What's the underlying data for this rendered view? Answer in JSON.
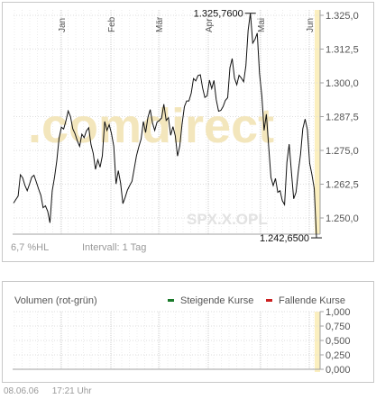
{
  "chart_data": [
    {
      "type": "line",
      "title": "",
      "instrument": "SPX.X.OPL",
      "watermark": ".comdirect",
      "months": [
        "Jan",
        "Feb",
        "Mär",
        "Apr",
        "Mai",
        "Jun"
      ],
      "yticks": [
        "1.325,0",
        "1.312,5",
        "1.300,0",
        "1.287,5",
        "1.275,0",
        "1.262,5",
        "1.250,0"
      ],
      "ytick_values": [
        1325.0,
        1312.5,
        1300.0,
        1287.5,
        1275.0,
        1262.5,
        1250.0
      ],
      "ylim": [
        1244.0,
        1327.0
      ],
      "high": {
        "value": 1325.76,
        "label": "1.325,7600"
      },
      "last": {
        "value": 1242.65,
        "label": "1.242,6500"
      },
      "range_label": "6,7 %HL",
      "interval_label": "Intervall: 1 Tag",
      "grid": true,
      "series": [
        {
          "values": [
            1255.5,
            1256.8,
            1258.1,
            1266.0,
            1264.9,
            1262.1,
            1260.1,
            1262.5,
            1265.1,
            1265.8,
            1263.3,
            1260.7,
            1258.4,
            1253.8,
            1254.5,
            1252.5,
            1248.2,
            1260.0,
            1265.1,
            1271.2,
            1279.5,
            1283.6,
            1282.9,
            1285.9,
            1289.6,
            1287.5,
            1283.0,
            1281.2,
            1278.6,
            1276.5,
            1281.0,
            1279.7,
            1282.2,
            1283.4,
            1277.2,
            1273.9,
            1268.0,
            1271.5,
            1268.8,
            1273.0,
            1285.7,
            1282.4,
            1284.5,
            1281.3,
            1276.5,
            1262.6,
            1267.5,
            1263.0,
            1255.3,
            1257.6,
            1260.3,
            1262.0,
            1263.6,
            1268.3,
            1273.1,
            1276.3,
            1279.2,
            1285.7,
            1281.6,
            1287.3,
            1290.1,
            1285.2,
            1282.4,
            1285.5,
            1286.1,
            1287.0,
            1292.1,
            1286.1,
            1287.1,
            1280.6,
            1283.8,
            1280.4,
            1272.9,
            1276.7,
            1284.7,
            1291.2,
            1293.3,
            1293.3,
            1296.2,
            1301.6,
            1300.7,
            1302.7,
            1303.0,
            1298.1,
            1294.6,
            1295.2,
            1301.0,
            1297.9,
            1300.9,
            1293.8,
            1289.5,
            1289.8,
            1291.2,
            1293.5,
            1294.5,
            1305.6,
            1309.0,
            1301.7,
            1299.3,
            1302.8,
            1301.8,
            1300.4,
            1306.3,
            1319.5,
            1325.8,
            1314.7,
            1316.1,
            1318.4,
            1303.5,
            1295.2,
            1282.4,
            1288.4,
            1276.8,
            1265.0,
            1262.0,
            1264.6,
            1259.5,
            1260.1,
            1256.4,
            1254.9,
            1270.6,
            1277.3,
            1267.0,
            1257.1,
            1259.5,
            1267.2,
            1273.5,
            1283.0,
            1286.6,
            1282.7,
            1270.3,
            1266.1,
            1260.9,
            1242.7
          ]
        }
      ]
    },
    {
      "type": "bar",
      "title": "Volumen (rot-grün)",
      "legend": [
        {
          "label": "Steigende Kurse",
          "color": "#1a7a2a"
        },
        {
          "label": "Fallende Kurse",
          "color": "#cc2020"
        }
      ],
      "yticks": [
        "1,000",
        "0,750",
        "0,500",
        "0,250",
        "0,000"
      ],
      "ylim": [
        0,
        1.0
      ],
      "values": []
    }
  ],
  "footer": {
    "date": "08.06.06",
    "time": "17:21 Uhr"
  }
}
